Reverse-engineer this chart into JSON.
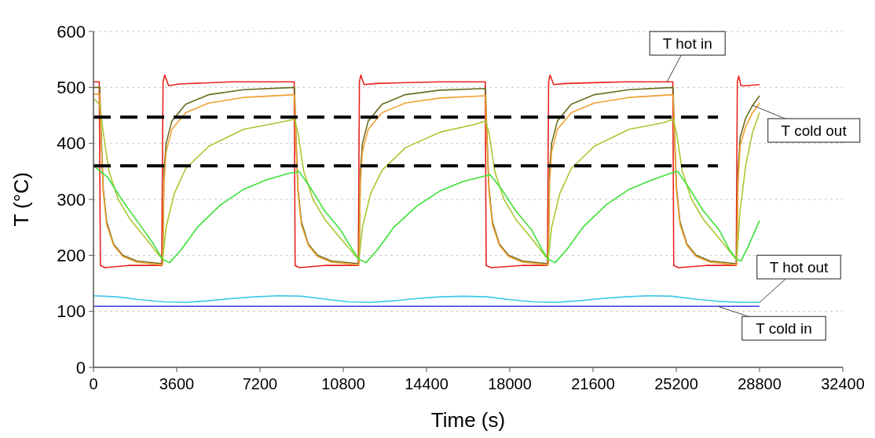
{
  "chart_data": {
    "type": "line",
    "xlabel": "Time (s)",
    "ylabel": "T (°C)",
    "xlim": [
      0,
      32400
    ],
    "xticks": [
      0,
      3600,
      7200,
      10800,
      14400,
      18000,
      21600,
      25200,
      28800,
      32400
    ],
    "ylim": [
      0,
      600
    ],
    "yticks": [
      0,
      100,
      200,
      300,
      400,
      500,
      600
    ],
    "grid": "y",
    "line_style": "solid",
    "marker": "none",
    "series": [
      {
        "color": "#e8231e",
        "x": [
          0,
          250,
          300,
          500,
          1500,
          2950,
          3010,
          3080,
          3250,
          3700,
          6000,
          8680,
          8720,
          8900,
          10000,
          11450,
          11500,
          11560,
          11700,
          12200,
          15000,
          16940,
          16980,
          17200,
          18500,
          19630,
          19680,
          19740,
          19900,
          20400,
          23000,
          25050,
          25090,
          25300,
          26500,
          27790,
          27840,
          27900,
          28000,
          28200,
          28800
        ],
        "values": [
          510,
          510,
          182,
          178,
          182,
          182,
          510,
          522,
          503,
          506,
          510,
          510,
          182,
          178,
          182,
          182,
          510,
          522,
          505,
          507,
          510,
          510,
          182,
          178,
          182,
          182,
          510,
          522,
          505,
          507,
          510,
          510,
          182,
          178,
          182,
          182,
          510,
          520,
          503,
          503,
          505
        ]
      },
      {
        "color": "#6b6b1e",
        "x": [
          0,
          270,
          330,
          420,
          570,
          870,
          1270,
          1870,
          2990,
          3050,
          3140,
          3390,
          3990,
          4990,
          6490,
          8690,
          8750,
          8840,
          8990,
          9290,
          9690,
          10290,
          11480,
          11540,
          11630,
          11880,
          12480,
          13480,
          14980,
          16950,
          17010,
          17100,
          17250,
          17550,
          17950,
          18550,
          19660,
          19720,
          19810,
          20060,
          20660,
          21660,
          23160,
          25060,
          25120,
          25210,
          25360,
          25660,
          26060,
          26660,
          27810,
          27870,
          27960,
          28200,
          28500,
          28800
        ],
        "values": [
          500,
          500,
          420,
          320,
          260,
          220,
          200,
          190,
          185,
          350,
          400,
          440,
          470,
          487,
          496,
          500,
          420,
          320,
          260,
          220,
          200,
          190,
          185,
          350,
          400,
          440,
          470,
          487,
          495,
          498,
          420,
          320,
          260,
          220,
          200,
          190,
          185,
          350,
          400,
          440,
          470,
          487,
          496,
          500,
          420,
          320,
          260,
          220,
          200,
          190,
          185,
          350,
          410,
          445,
          468,
          485
        ]
      },
      {
        "color": "#f0a030",
        "x": [
          0,
          270,
          330,
          420,
          570,
          870,
          1270,
          1870,
          2990,
          3050,
          3140,
          3390,
          3990,
          4990,
          6490,
          8690,
          8750,
          8840,
          8990,
          9290,
          9690,
          10290,
          11480,
          11540,
          11630,
          11880,
          12480,
          13480,
          14980,
          16950,
          17010,
          17100,
          17250,
          17550,
          17950,
          18550,
          19660,
          19720,
          19810,
          20060,
          20660,
          21660,
          23160,
          25060,
          25120,
          25210,
          25360,
          25660,
          26060,
          26660,
          27810,
          27870,
          27960,
          28200,
          28500,
          28800
        ],
        "values": [
          488,
          488,
          410,
          315,
          255,
          218,
          198,
          188,
          183,
          330,
          385,
          425,
          455,
          472,
          482,
          487,
          410,
          315,
          255,
          218,
          198,
          188,
          183,
          330,
          385,
          425,
          455,
          472,
          481,
          485,
          410,
          315,
          255,
          218,
          198,
          188,
          183,
          330,
          385,
          425,
          455,
          472,
          482,
          487,
          410,
          315,
          255,
          218,
          198,
          188,
          183,
          330,
          395,
          430,
          455,
          472
        ]
      },
      {
        "color": "#a8c830",
        "x": [
          0,
          270,
          420,
          670,
          1070,
          1570,
          2270,
          2990,
          3140,
          3490,
          3990,
          4990,
          6490,
          7990,
          8690,
          8840,
          9090,
          9490,
          9990,
          10690,
          11480,
          11630,
          11980,
          12480,
          13480,
          14980,
          16480,
          16950,
          17100,
          17350,
          17750,
          18250,
          18950,
          19660,
          19810,
          20160,
          20660,
          21660,
          23160,
          24660,
          25060,
          25210,
          25460,
          25860,
          26360,
          27060,
          27810,
          27960,
          28200,
          28500,
          28800
        ],
        "values": [
          480,
          470,
          420,
          350,
          300,
          265,
          230,
          192,
          250,
          310,
          355,
          395,
          425,
          437,
          443,
          420,
          350,
          300,
          265,
          230,
          192,
          250,
          310,
          352,
          392,
          420,
          434,
          440,
          420,
          350,
          300,
          265,
          230,
          192,
          250,
          310,
          355,
          395,
          425,
          437,
          443,
          420,
          350,
          300,
          265,
          230,
          192,
          280,
          360,
          420,
          455
        ]
      },
      {
        "color": "#3ee03a",
        "x": [
          0,
          600,
          1300,
          2000,
          2600,
          2990,
          3290,
          3790,
          4490,
          5490,
          6490,
          7490,
          8490,
          8690,
          8890,
          9390,
          9990,
          10690,
          11200,
          11480,
          11780,
          12280,
          12980,
          13980,
          14980,
          15980,
          16950,
          17150,
          17650,
          18250,
          18950,
          19400,
          19660,
          19960,
          20460,
          21160,
          22160,
          23160,
          24160,
          25060,
          25260,
          25760,
          26360,
          27060,
          27500,
          27810,
          28000,
          28300,
          28800
        ],
        "values": [
          360,
          340,
          295,
          255,
          220,
          193,
          187,
          210,
          250,
          290,
          318,
          335,
          347,
          348,
          350,
          320,
          280,
          245,
          210,
          193,
          187,
          210,
          250,
          288,
          315,
          332,
          342,
          344,
          318,
          280,
          245,
          210,
          193,
          187,
          210,
          250,
          290,
          318,
          335,
          348,
          350,
          320,
          280,
          245,
          210,
          193,
          190,
          215,
          262
        ]
      },
      {
        "color": "#3cc8e8",
        "x": [
          0,
          1000,
          2000,
          3000,
          4000,
          5000,
          6000,
          7000,
          8000,
          9000,
          10000,
          11000,
          12000,
          13000,
          14000,
          15000,
          16000,
          17000,
          18000,
          19000,
          20000,
          21000,
          22000,
          23000,
          24000,
          25000,
          26000,
          27000,
          28000,
          28800
        ],
        "values": [
          128,
          126,
          121,
          117,
          116,
          119,
          123,
          126,
          128,
          127,
          122,
          117,
          116,
          119,
          123,
          126,
          127,
          126,
          121,
          117,
          116,
          119,
          123,
          126,
          128,
          127,
          122,
          118,
          116,
          116
        ]
      },
      {
        "color": "#3a3ae0",
        "x": [
          0,
          28800
        ],
        "values": [
          109,
          109
        ]
      },
      {
        "color": "#000000",
        "line_style": "dashed",
        "x": [
          0,
          27000
        ],
        "values": [
          447,
          447
        ]
      },
      {
        "color": "#000000",
        "line_style": "dashed",
        "x": [
          0,
          27000
        ],
        "values": [
          360,
          360
        ]
      }
    ],
    "annotations": [
      {
        "text": "T hot in",
        "x": 24800,
        "y": 510
      },
      {
        "text": "T cold out",
        "x": 28500,
        "y": 468
      },
      {
        "text": "T hot out",
        "x": 28800,
        "y": 116
      },
      {
        "text": "T cold in",
        "x": 27000,
        "y": 109
      }
    ]
  }
}
